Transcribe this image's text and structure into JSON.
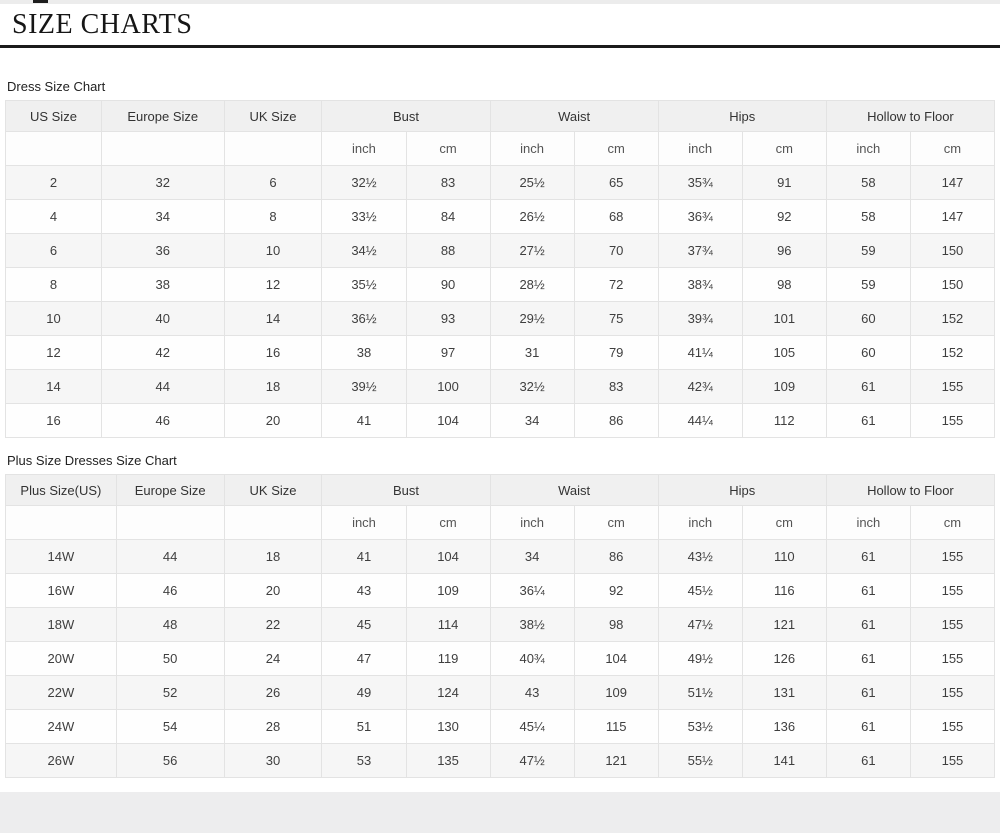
{
  "page_title": "SIZE CHARTS",
  "sections": [
    {
      "label": "Dress Size Chart",
      "columns": [
        "US Size",
        "Europe Size",
        "UK Size",
        "Bust",
        "Waist",
        "Hips",
        "Hollow to Floor"
      ],
      "unit_labels": [
        "inch",
        "cm"
      ],
      "rows": [
        [
          "2",
          "32",
          "6",
          "32½",
          "83",
          "25½",
          "65",
          "35¾",
          "91",
          "58",
          "147"
        ],
        [
          "4",
          "34",
          "8",
          "33½",
          "84",
          "26½",
          "68",
          "36¾",
          "92",
          "58",
          "147"
        ],
        [
          "6",
          "36",
          "10",
          "34½",
          "88",
          "27½",
          "70",
          "37¾",
          "96",
          "59",
          "150"
        ],
        [
          "8",
          "38",
          "12",
          "35½",
          "90",
          "28½",
          "72",
          "38¾",
          "98",
          "59",
          "150"
        ],
        [
          "10",
          "40",
          "14",
          "36½",
          "93",
          "29½",
          "75",
          "39¾",
          "101",
          "60",
          "152"
        ],
        [
          "12",
          "42",
          "16",
          "38",
          "97",
          "31",
          "79",
          "41¼",
          "105",
          "60",
          "152"
        ],
        [
          "14",
          "44",
          "18",
          "39½",
          "100",
          "32½",
          "83",
          "42¾",
          "109",
          "61",
          "155"
        ],
        [
          "16",
          "46",
          "20",
          "41",
          "104",
          "34",
          "86",
          "44¼",
          "112",
          "61",
          "155"
        ]
      ]
    },
    {
      "label": "Plus Size Dresses Size Chart",
      "columns": [
        "Plus Size(US)",
        "Europe Size",
        "UK Size",
        "Bust",
        "Waist",
        "Hips",
        "Hollow to Floor"
      ],
      "unit_labels": [
        "inch",
        "cm"
      ],
      "rows": [
        [
          "14W",
          "44",
          "18",
          "41",
          "104",
          "34",
          "86",
          "43½",
          "110",
          "61",
          "155"
        ],
        [
          "16W",
          "46",
          "20",
          "43",
          "109",
          "36¼",
          "92",
          "45½",
          "116",
          "61",
          "155"
        ],
        [
          "18W",
          "48",
          "22",
          "45",
          "114",
          "38½",
          "98",
          "47½",
          "121",
          "61",
          "155"
        ],
        [
          "20W",
          "50",
          "24",
          "47",
          "119",
          "40¾",
          "104",
          "49½",
          "126",
          "61",
          "155"
        ],
        [
          "22W",
          "52",
          "26",
          "49",
          "124",
          "43",
          "109",
          "51½",
          "131",
          "61",
          "155"
        ],
        [
          "24W",
          "54",
          "28",
          "51",
          "130",
          "45¼",
          "115",
          "53½",
          "136",
          "61",
          "155"
        ],
        [
          "26W",
          "56",
          "30",
          "53",
          "135",
          "47½",
          "121",
          "55½",
          "141",
          "61",
          "155"
        ]
      ]
    }
  ],
  "colors": {
    "title_rule": "#1b1b1b",
    "header_bg": "#f0f0f0",
    "row_alt_bg": "#f6f6f6",
    "border": "#e3e3e3",
    "footer_band": "#ededee"
  }
}
